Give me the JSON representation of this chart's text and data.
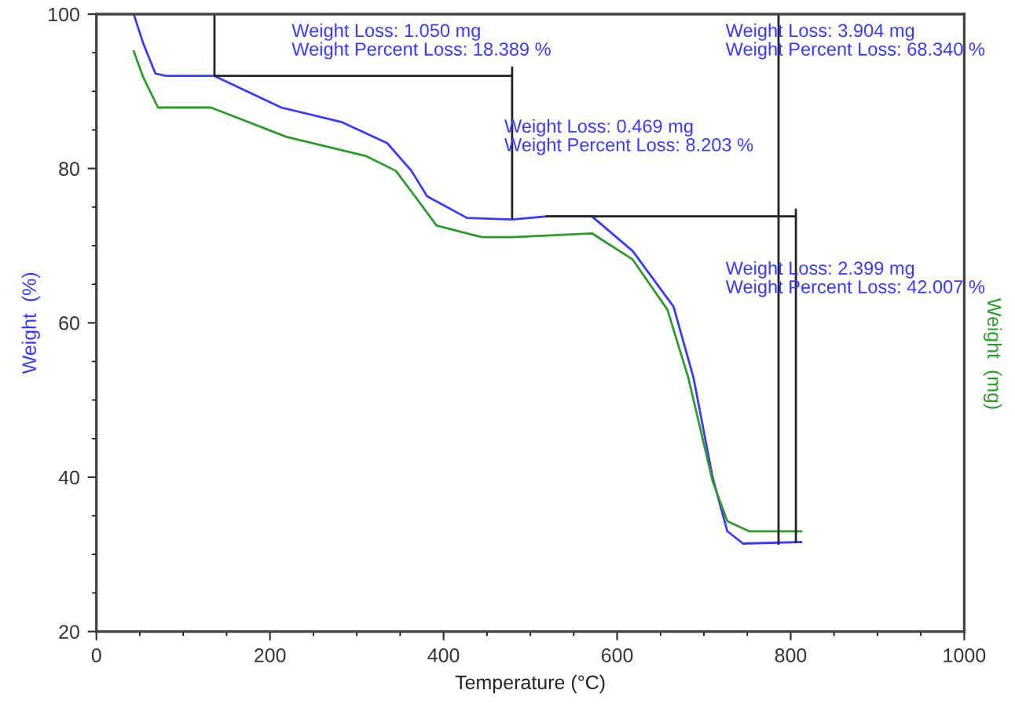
{
  "chart_data": {
    "type": "line",
    "xlabel": "Temperature (°C)",
    "ylabel": "Weight  (%)",
    "y2label": "Weight  (mg)",
    "xlim": [
      0,
      1000
    ],
    "xticks": [
      0,
      200,
      400,
      600,
      800,
      1000
    ],
    "ylim": [
      20,
      100
    ],
    "yticks": [
      20,
      40,
      60,
      80,
      100
    ],
    "grid": false,
    "legend": false,
    "marker": "none",
    "line_style": "solid",
    "series": [
      {
        "color": "#3a3aff",
        "x": [
          43,
          54,
          68,
          80,
          136,
          213,
          283,
          335,
          363,
          381,
          427,
          479,
          519,
          571,
          618,
          665,
          688,
          710,
          727,
          745,
          812
        ],
        "values": [
          100,
          96.2,
          92.3,
          92.0,
          92.0,
          87.9,
          86.0,
          83.3,
          79.7,
          76.4,
          73.6,
          73.4,
          73.8,
          73.8,
          69.3,
          62.1,
          52.9,
          40.0,
          33.0,
          31.4,
          31.6
        ]
      },
      {
        "color": "#2e9a2e",
        "x": [
          43,
          54,
          71,
          132,
          219,
          311,
          345,
          369,
          392,
          444,
          479,
          571,
          618,
          658,
          682,
          710,
          727,
          752,
          812
        ],
        "values": [
          95.2,
          91.8,
          87.9,
          87.9,
          84.1,
          81.6,
          79.7,
          76.1,
          72.6,
          71.1,
          71.1,
          71.6,
          68.2,
          61.7,
          52.9,
          39.5,
          34.3,
          33.0,
          33.0
        ]
      },
      {
        "color": "#222222",
        "x": [
          136,
          136,
          479,
          479,
          479
        ],
        "values": [
          100,
          92.0,
          92.0,
          93.1,
          73.6
        ]
      },
      {
        "color": "#222222",
        "x": [
          519,
          806,
          806,
          806
        ],
        "values": [
          73.8,
          73.8,
          74.7,
          31.6
        ]
      },
      {
        "color": "#222222",
        "x": [
          786,
          786
        ],
        "values": [
          100,
          31.4
        ]
      }
    ],
    "annotations": [
      "Weight Loss: 1.050 mg\nWeight Percent Loss: 18.389 %",
      "Weight Loss: 0.469 mg\nWeight Percent Loss: 8.203 %",
      "Weight Loss: 3.904 mg\nWeight Percent Loss: 68.340 %",
      "Weight Loss: 2.399 mg\nWeight Percent Loss: 42.007 %"
    ]
  }
}
